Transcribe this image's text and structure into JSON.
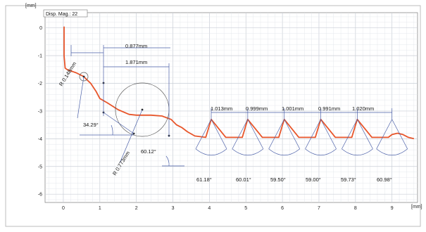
{
  "chart_data": {
    "type": "line",
    "display_magnification": "Disp. Mag.: 22",
    "y_unit": "[mm]",
    "x_unit": "[mm]",
    "xlim": [
      -0.5,
      9.7
    ],
    "ylim": [
      -6.3,
      0.55
    ],
    "x_ticks": [
      0,
      1,
      2,
      3,
      4,
      5,
      6,
      7,
      8,
      9
    ],
    "y_ticks": [
      0,
      -1,
      -2,
      -3,
      -4,
      -5,
      -6
    ],
    "grid": true,
    "series": [
      {
        "color": "#e8552a",
        "x": [
          0.02,
          0.02,
          0.05,
          0.1,
          0.2,
          0.35,
          0.55,
          0.75,
          0.9,
          1.0,
          1.2,
          1.5,
          1.8,
          2.0,
          2.4,
          2.7,
          2.95,
          3.1,
          3.25,
          3.4,
          3.6,
          3.9,
          4.05,
          4.45,
          4.9,
          5.05,
          5.45,
          5.9,
          6.05,
          6.45,
          6.9,
          7.05,
          7.45,
          7.9,
          8.05,
          8.45,
          8.9,
          9.0,
          9.15,
          9.3,
          9.45,
          9.6
        ],
        "y": [
          0.05,
          -1.0,
          -1.45,
          -1.5,
          -1.55,
          -1.62,
          -1.75,
          -2.0,
          -2.3,
          -2.55,
          -2.7,
          -2.95,
          -3.12,
          -3.15,
          -3.15,
          -3.18,
          -3.3,
          -3.5,
          -3.6,
          -3.75,
          -3.9,
          -3.95,
          -3.3,
          -3.95,
          -3.95,
          -3.3,
          -3.95,
          -3.95,
          -3.3,
          -3.95,
          -3.95,
          -3.3,
          -3.95,
          -3.95,
          -3.3,
          -3.95,
          -3.95,
          -3.85,
          -3.8,
          -3.85,
          -3.95,
          -4.0
        ]
      }
    ],
    "annotations": {
      "radii": [
        "R 0.148mm",
        "R 0.773mm"
      ],
      "angles_left": [
        "34.29°",
        "60.12°"
      ],
      "lengths_top": [
        "0.877mm",
        "1.871mm"
      ],
      "pitches": [
        "1.013mm",
        "0.999mm",
        "1.001mm",
        "0.991mm",
        "1.020mm"
      ],
      "thread_angles": [
        "61.18°",
        "60.01°",
        "59.50°",
        "59.00°",
        "59.73°",
        "60.98°"
      ]
    }
  },
  "colors": {
    "profile": "#e8552a",
    "annotation": "#4a5fa8",
    "grid": "#dfe3e8",
    "frame": "#8a8a8a"
  }
}
